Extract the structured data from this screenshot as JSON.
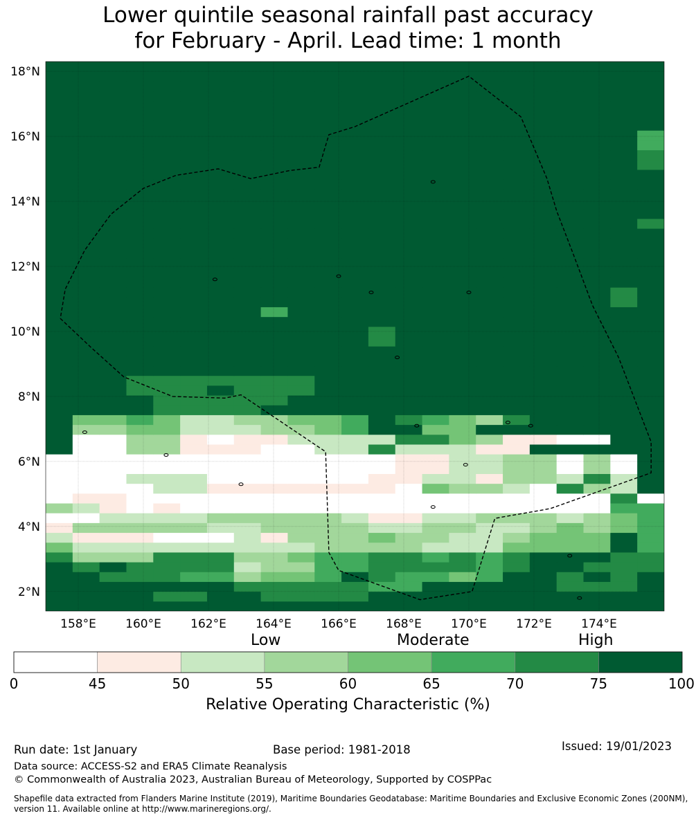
{
  "title": {
    "line1": "Lower quintile seasonal rainfall past accuracy",
    "line2": "for February - April. Lead time: 1 month"
  },
  "map": {
    "lon_range": [
      157,
      176
    ],
    "lat_range": [
      1.4,
      18.3
    ],
    "lat_ticks": [
      {
        "value": 18,
        "label": "18°N"
      },
      {
        "value": 16,
        "label": "16°N"
      },
      {
        "value": 14,
        "label": "14°N"
      },
      {
        "value": 12,
        "label": "12°N"
      },
      {
        "value": 10,
        "label": "10°N"
      },
      {
        "value": 8,
        "label": "8°N"
      },
      {
        "value": 6,
        "label": "6°N"
      },
      {
        "value": 4,
        "label": "4°N"
      },
      {
        "value": 2,
        "label": "2°N"
      }
    ],
    "lon_ticks": [
      {
        "value": 158,
        "label": "158°E"
      },
      {
        "value": 160,
        "label": "160°E"
      },
      {
        "value": 162,
        "label": "162°E"
      },
      {
        "value": 164,
        "label": "164°E"
      },
      {
        "value": 166,
        "label": "166°E"
      },
      {
        "value": 168,
        "label": "168°E"
      },
      {
        "value": 170,
        "label": "170°E"
      },
      {
        "value": 172,
        "label": "172°E"
      },
      {
        "value": 174,
        "label": "174°E"
      }
    ],
    "eez_boundary": [
      [
        157.45,
        10.4
      ],
      [
        158.4,
        9.5
      ],
      [
        159.4,
        8.6
      ],
      [
        160.9,
        8.0
      ],
      [
        162.5,
        7.95
      ],
      [
        163.0,
        8.05
      ],
      [
        165.6,
        6.3
      ],
      [
        165.7,
        3.2
      ],
      [
        166.0,
        2.65
      ],
      [
        168.5,
        1.75
      ],
      [
        170.1,
        2.0
      ],
      [
        170.8,
        4.25
      ],
      [
        172.5,
        4.55
      ],
      [
        175.6,
        5.65
      ],
      [
        175.6,
        6.6
      ],
      [
        174.6,
        9.2
      ],
      [
        173.8,
        10.8
      ],
      [
        173.2,
        12.4
      ],
      [
        172.7,
        13.7
      ],
      [
        172.4,
        14.7
      ],
      [
        171.6,
        16.6
      ],
      [
        170.0,
        17.85
      ],
      [
        166.5,
        16.3
      ],
      [
        165.7,
        16.05
      ],
      [
        165.4,
        15.05
      ],
      [
        164.5,
        14.95
      ],
      [
        163.3,
        14.7
      ],
      [
        162.3,
        15.0
      ],
      [
        161.0,
        14.8
      ],
      [
        160.0,
        14.4
      ],
      [
        159.0,
        13.6
      ],
      [
        158.2,
        12.5
      ],
      [
        157.6,
        11.3
      ],
      [
        157.45,
        10.4
      ]
    ],
    "atolls": [
      [
        158.2,
        6.9
      ],
      [
        160.7,
        6.2
      ],
      [
        163.0,
        5.3
      ],
      [
        167.8,
        9.2
      ],
      [
        168.4,
        7.1
      ],
      [
        168.9,
        4.6
      ],
      [
        169.9,
        5.9
      ],
      [
        171.2,
        7.2
      ],
      [
        171.9,
        7.1
      ],
      [
        173.1,
        3.1
      ],
      [
        173.4,
        1.8
      ],
      [
        162.2,
        11.6
      ],
      [
        166.0,
        11.7
      ],
      [
        167.0,
        11.2
      ],
      [
        170.0,
        11.2
      ],
      [
        168.9,
        14.6
      ]
    ]
  },
  "colorbar": {
    "categories": [
      "Low",
      "Moderate",
      "High"
    ],
    "bins": [
      {
        "min": 0,
        "max": 45,
        "color": "#ffffff"
      },
      {
        "min": 45,
        "max": 50,
        "color": "#fdebe3"
      },
      {
        "min": 50,
        "max": 55,
        "color": "#c8e8c2"
      },
      {
        "min": 55,
        "max": 60,
        "color": "#a2d79b"
      },
      {
        "min": 60,
        "max": 65,
        "color": "#74c476"
      },
      {
        "min": 65,
        "max": 70,
        "color": "#41ab5d"
      },
      {
        "min": 70,
        "max": 75,
        "color": "#238a45"
      },
      {
        "min": 75,
        "max": 100,
        "color": "#005a32"
      }
    ],
    "tick_labels": [
      "0",
      "45",
      "50",
      "55",
      "60",
      "65",
      "70",
      "75",
      "100"
    ],
    "title": "Relative Operating Characteristic (%)"
  },
  "footer": {
    "run_date": "Run date: 1st January",
    "base_period": "Base period: 1981-2018",
    "issued": "Issued: 19/01/2023",
    "data_source": "Data source: ACCESS-S2 and ERA5 Climate Reanalysis",
    "copyright": "© Commonwealth of Australia 2023, Australian Bureau of Meteorology, Supported by COSPPac",
    "shapefile": "Shapefile data extracted from Flanders Marine Institute (2019), Maritime Boundaries Geodatabase: Maritime Boundaries and Exclusive Economic Zones (200NM), version 11. Available online at http://www.marineregions.org/."
  }
}
